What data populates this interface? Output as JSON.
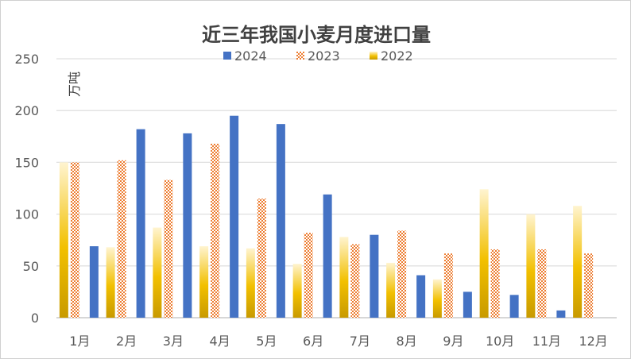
{
  "chart_data": {
    "type": "bar",
    "title": "近三年我国小麦月度进口量",
    "ylabel": "万吨",
    "xlabel": "",
    "ylim": [
      0,
      250
    ],
    "yticks": [
      "0",
      "50",
      "100",
      "150",
      "200",
      "250"
    ],
    "grid": true,
    "legend_position": "top-center",
    "categories": [
      "1月",
      "2月",
      "3月",
      "4月",
      "5月",
      "6月",
      "7月",
      "8月",
      "9月",
      "10月",
      "11月",
      "12月"
    ],
    "series": [
      {
        "name": "2022",
        "color": "#E8B400",
        "values": [
          150,
          68,
          87,
          69,
          67,
          52,
          78,
          53,
          37,
          124,
          100,
          108
        ]
      },
      {
        "name": "2023",
        "color": "#ED7D31",
        "values": [
          150,
          152,
          133,
          168,
          115,
          82,
          71,
          84,
          62,
          66,
          66,
          62
        ]
      },
      {
        "name": "2024",
        "color": "#4472C4",
        "values": [
          69,
          182,
          178,
          195,
          187,
          119,
          80,
          41,
          25,
          22,
          7,
          null
        ]
      }
    ]
  }
}
